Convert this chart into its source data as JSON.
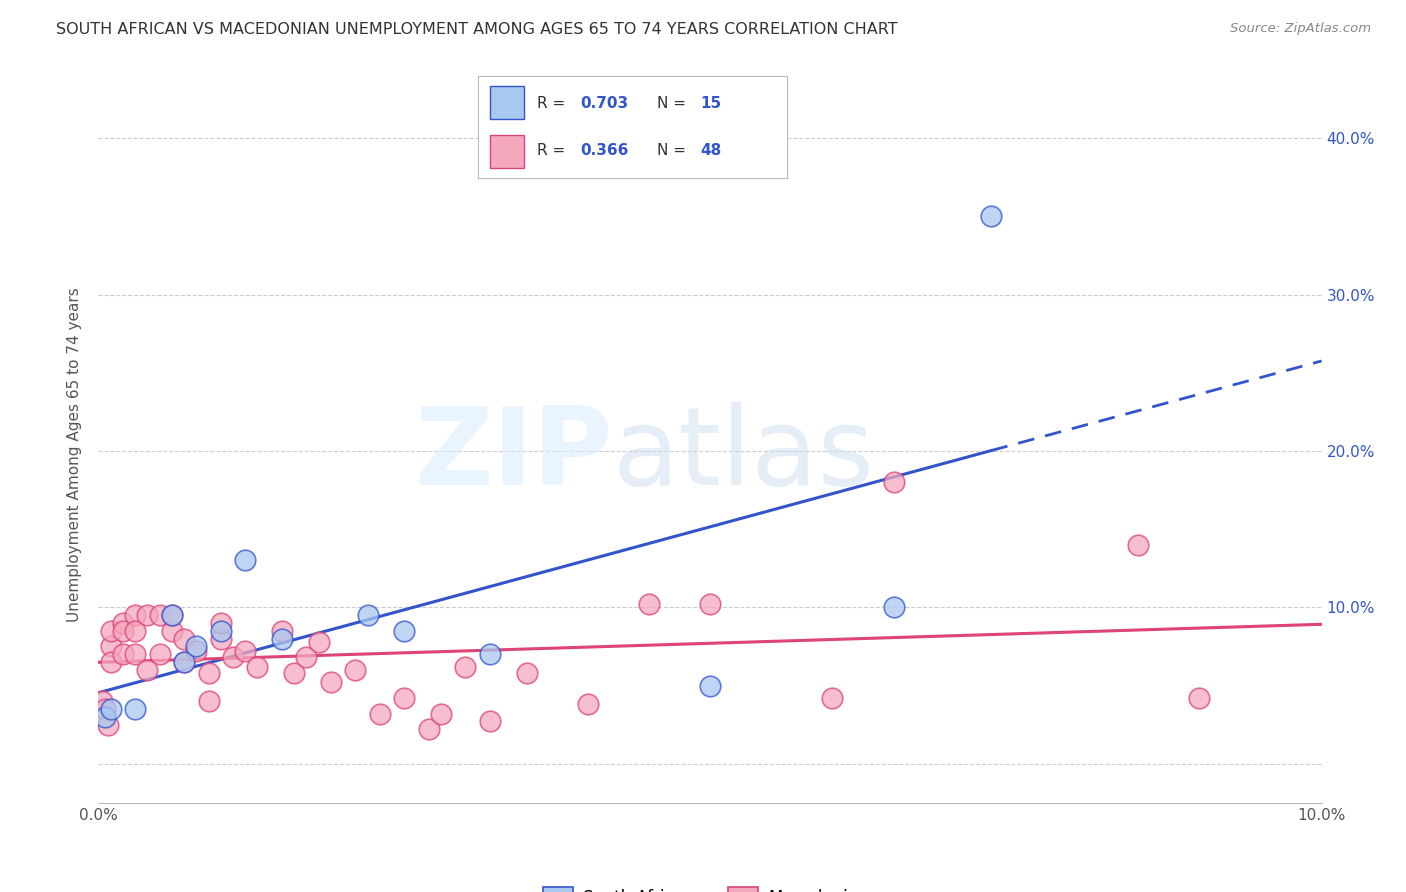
{
  "title": "SOUTH AFRICAN VS MACEDONIAN UNEMPLOYMENT AMONG AGES 65 TO 74 YEARS CORRELATION CHART",
  "source": "Source: ZipAtlas.com",
  "ylabel": "Unemployment Among Ages 65 to 74 years",
  "xlim": [
    0.0,
    0.1
  ],
  "ylim": [
    -0.025,
    0.42
  ],
  "sa_color": "#A8C8F0",
  "mac_color": "#F4A8BE",
  "sa_line_color": "#3355CC",
  "mac_line_color": "#DD4477",
  "sa_points_x": [
    0.0005,
    0.001,
    0.003,
    0.006,
    0.007,
    0.008,
    0.01,
    0.012,
    0.015,
    0.022,
    0.025,
    0.032,
    0.05,
    0.065,
    0.073
  ],
  "sa_points_y": [
    0.03,
    0.035,
    0.035,
    0.095,
    0.065,
    0.075,
    0.085,
    0.13,
    0.08,
    0.095,
    0.085,
    0.07,
    0.05,
    0.1,
    0.35
  ],
  "mac_points_x": [
    0.0003,
    0.0005,
    0.0008,
    0.001,
    0.001,
    0.001,
    0.002,
    0.002,
    0.002,
    0.003,
    0.003,
    0.003,
    0.004,
    0.004,
    0.005,
    0.005,
    0.006,
    0.006,
    0.007,
    0.007,
    0.008,
    0.009,
    0.009,
    0.01,
    0.01,
    0.011,
    0.012,
    0.013,
    0.015,
    0.016,
    0.017,
    0.018,
    0.019,
    0.021,
    0.023,
    0.025,
    0.027,
    0.028,
    0.03,
    0.032,
    0.035,
    0.04,
    0.045,
    0.05,
    0.06,
    0.065,
    0.085,
    0.09
  ],
  "mac_points_y": [
    0.04,
    0.035,
    0.025,
    0.075,
    0.085,
    0.065,
    0.09,
    0.085,
    0.07,
    0.095,
    0.085,
    0.07,
    0.095,
    0.06,
    0.095,
    0.07,
    0.085,
    0.095,
    0.065,
    0.08,
    0.072,
    0.058,
    0.04,
    0.08,
    0.09,
    0.068,
    0.072,
    0.062,
    0.085,
    0.058,
    0.068,
    0.078,
    0.052,
    0.06,
    0.032,
    0.042,
    0.022,
    0.032,
    0.062,
    0.027,
    0.058,
    0.038,
    0.102,
    0.102,
    0.042,
    0.18,
    0.14,
    0.042
  ],
  "background_color": "#FFFFFF",
  "grid_color": "#CCCCCC",
  "sa_line_start_x": -0.002,
  "sa_line_end_x": 0.1,
  "sa_line_solid_end": 0.073,
  "mac_line_start_x": 0.0,
  "mac_line_end_x": 0.1
}
